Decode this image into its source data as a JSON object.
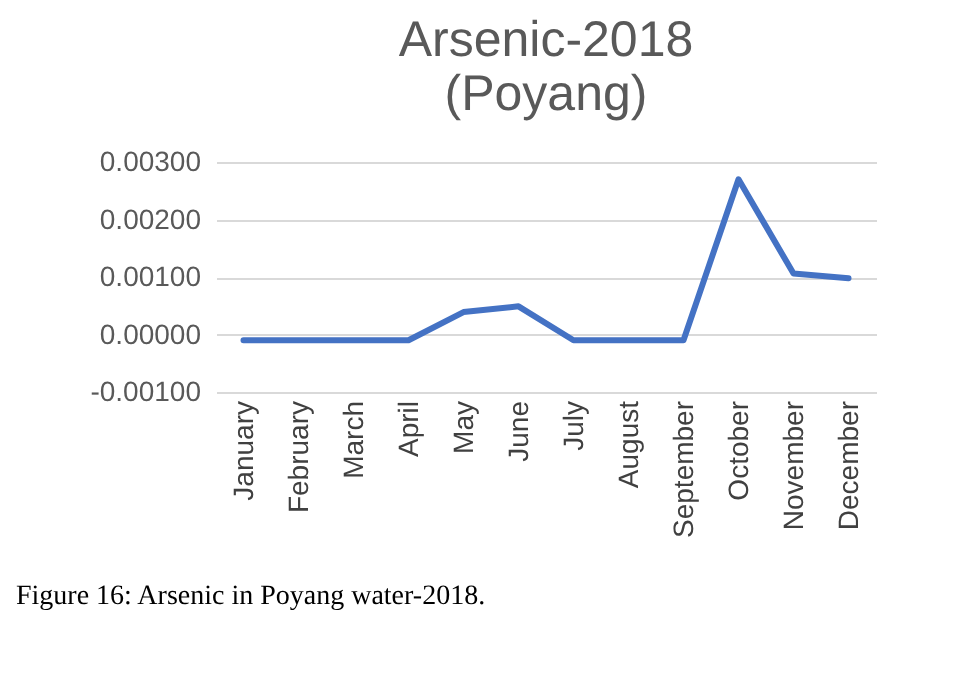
{
  "chart_data": {
    "type": "line",
    "title": [
      "Arsenic-2018",
      "(Poyang)"
    ],
    "categories": [
      "January",
      "February",
      "March",
      "April",
      "May",
      "June",
      "July",
      "August",
      "September",
      "October",
      "November",
      "December"
    ],
    "series": [
      {
        "color": "#4472c4",
        "values": [
          -0.0001,
          -0.0001,
          -0.0001,
          -0.0001,
          0.00039,
          0.00049,
          -0.0001,
          -0.0001,
          -0.0001,
          0.0027,
          0.00106,
          0.00098
        ]
      }
    ],
    "ylim": [
      -0.001,
      0.003
    ],
    "yticks": [
      {
        "value": -0.001,
        "label": "-0.00100"
      },
      {
        "value": 0,
        "label": "0.00000"
      },
      {
        "value": 0.001,
        "label": "0.00100"
      },
      {
        "value": 0.002,
        "label": "0.00200"
      },
      {
        "value": 0.003,
        "label": "0.00300"
      }
    ],
    "grid": "y",
    "marker": "none",
    "line_style": "solid",
    "annotations": [
      "Figure 16: Arsenic in Poyang water-2018."
    ]
  }
}
